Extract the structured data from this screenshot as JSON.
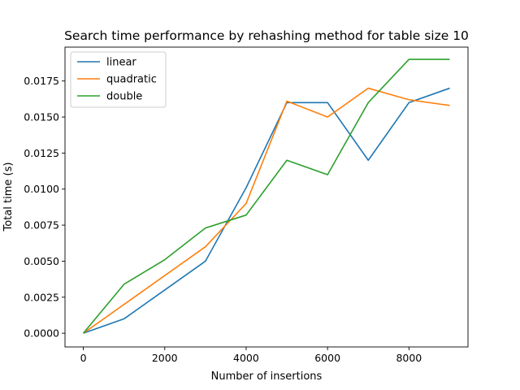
{
  "chart_data": {
    "type": "line",
    "title": "Search time performance by rehashing method for table size 10",
    "xlabel": "Number of insertions",
    "ylabel": "Total time (s)",
    "xlim": [
      -450,
      9450
    ],
    "ylim": [
      -0.00095,
      0.01985
    ],
    "xticks": [
      0,
      2000,
      4000,
      6000,
      8000
    ],
    "xtick_labels": [
      "0",
      "2000",
      "4000",
      "6000",
      "8000"
    ],
    "yticks": [
      0.0,
      0.0025,
      0.005,
      0.0075,
      0.01,
      0.0125,
      0.015,
      0.0175
    ],
    "ytick_labels": [
      "0.0000",
      "0.0025",
      "0.0050",
      "0.0075",
      "0.0100",
      "0.0125",
      "0.0150",
      "0.0175"
    ],
    "grid": false,
    "legend_position": "top-left",
    "x": [
      0,
      1000,
      2000,
      3000,
      4000,
      5000,
      6000,
      7000,
      8000,
      9000
    ],
    "series": [
      {
        "name": "linear",
        "color": "#1f77b4",
        "values": [
          0.0,
          0.001,
          0.003,
          0.005,
          0.0101,
          0.016,
          0.016,
          0.012,
          0.016,
          0.017
        ]
      },
      {
        "name": "quadratic",
        "color": "#ff7f0e",
        "values": [
          0.0,
          0.002,
          0.004,
          0.006,
          0.009,
          0.0161,
          0.015,
          0.017,
          0.0162,
          0.0158
        ]
      },
      {
        "name": "double",
        "color": "#2ca02c",
        "values": [
          0.0,
          0.0034,
          0.0051,
          0.0073,
          0.0082,
          0.012,
          0.011,
          0.016,
          0.019,
          0.019
        ]
      }
    ]
  }
}
